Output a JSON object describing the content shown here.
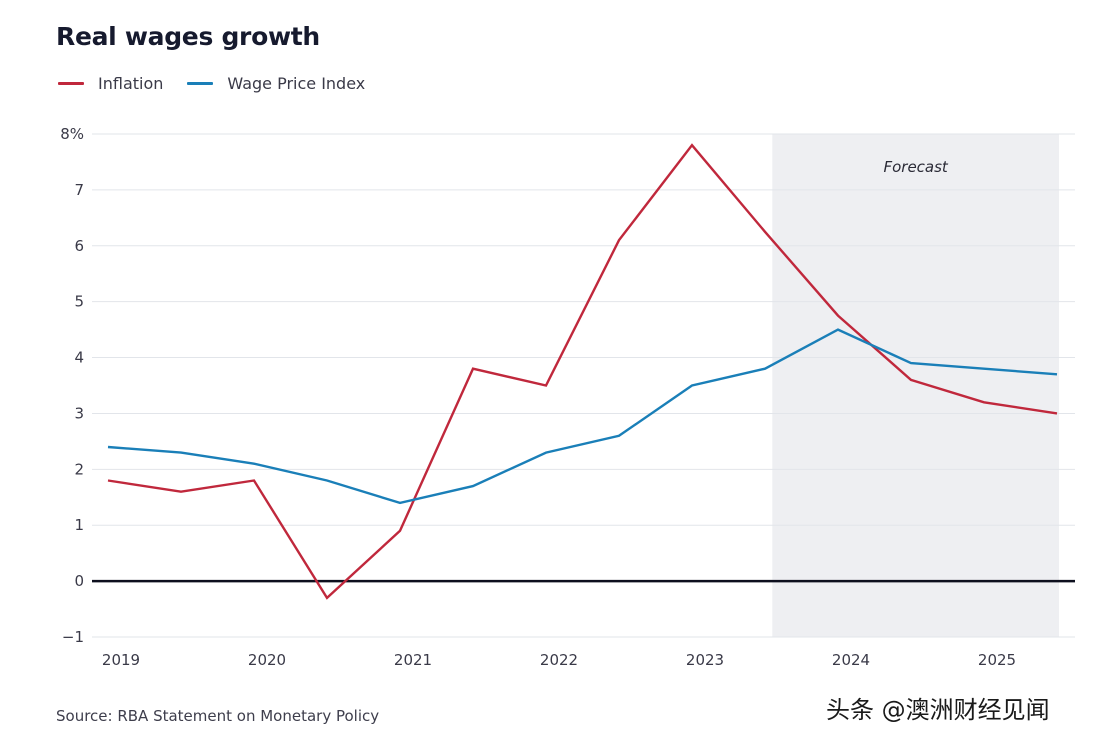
{
  "header": {
    "title": "Real wages growth"
  },
  "legend": [
    {
      "label": "Inflation",
      "color": "#c0283c"
    },
    {
      "label": "Wage Price Index",
      "color": "#1a7fb8"
    }
  ],
  "footer": {
    "source": "Source: RBA Statement on Monetary Policy",
    "watermark": "头条 @澳洲财经见闻"
  },
  "chart_data": {
    "type": "line",
    "title": "Real wages growth",
    "xlabel": "",
    "ylabel": "",
    "x": [
      2019.0,
      2019.5,
      2020.0,
      2020.5,
      2021.0,
      2021.5,
      2022.0,
      2022.5,
      2023.0,
      2023.5,
      2024.0,
      2024.5,
      2025.0,
      2025.5
    ],
    "series": [
      {
        "name": "Inflation",
        "color": "#c0283c",
        "values": [
          1.8,
          1.6,
          1.8,
          -0.3,
          0.9,
          3.8,
          3.5,
          6.1,
          7.8,
          6.25,
          4.75,
          3.6,
          3.2,
          3.0
        ]
      },
      {
        "name": "Wage Price Index",
        "color": "#1a7fb8",
        "values": [
          2.4,
          2.3,
          2.1,
          1.8,
          1.4,
          1.7,
          2.3,
          2.6,
          3.5,
          3.8,
          4.5,
          3.9,
          3.8,
          3.7
        ]
      }
    ],
    "xlim": [
      2019.0,
      2025.5
    ],
    "ylim": [
      -1,
      8
    ],
    "x_ticks": [
      2019,
      2020,
      2021,
      2022,
      2023,
      2024,
      2025
    ],
    "x_tick_labels": [
      "2019",
      "2020",
      "2021",
      "2022",
      "2023",
      "2024",
      "2025"
    ],
    "y_ticks": [
      -1,
      0,
      1,
      2,
      3,
      4,
      5,
      6,
      7,
      8
    ],
    "y_tick_labels": [
      "−1",
      "0",
      "1",
      "2",
      "3",
      "4",
      "5",
      "6",
      "7",
      "8%"
    ],
    "grid": true,
    "zero_line": true,
    "legend_position": "top-left",
    "annotations": [
      {
        "type": "shaded-region",
        "label": "Forecast",
        "x_start": 2023.55,
        "x_end": 2025.5,
        "color": "#eeeff2"
      }
    ]
  }
}
